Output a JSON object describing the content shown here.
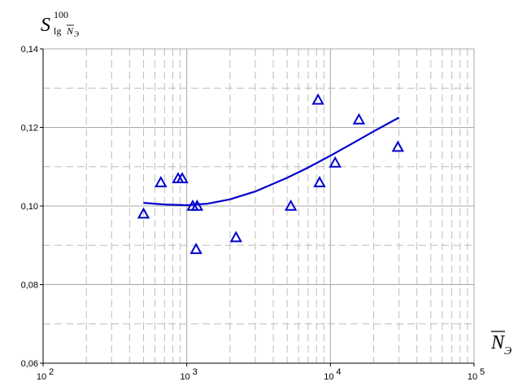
{
  "chart_data": {
    "type": "scatter",
    "y_label": {
      "main": "S",
      "superscript": "100",
      "subscript_prefix": "lg",
      "subscript_var": "N",
      "subscript_index": "Э"
    },
    "x_label": {
      "main": "N",
      "subscript": "Э"
    },
    "x_scale": "log",
    "xlim": [
      100,
      100000
    ],
    "ylim": [
      0.06,
      0.14
    ],
    "x_ticks": [
      {
        "value": 100,
        "base": "10",
        "exp": "2"
      },
      {
        "value": 1000,
        "base": "10",
        "exp": "3"
      },
      {
        "value": 10000,
        "base": "10",
        "exp": "4"
      },
      {
        "value": 100000,
        "base": "10",
        "exp": "5"
      }
    ],
    "y_ticks": [
      {
        "value": 0.06,
        "label": "0,06"
      },
      {
        "value": 0.08,
        "label": "0,08"
      },
      {
        "value": 0.1,
        "label": "0,10"
      },
      {
        "value": 0.12,
        "label": "0,12"
      },
      {
        "value": 0.14,
        "label": "0,14"
      }
    ],
    "grid": true,
    "colors": {
      "series": "#0000cc",
      "grid_major": "#a8a8a8",
      "grid_minor": "#bdbdbd",
      "axis": "#000000"
    },
    "series": [
      {
        "type": "scatter",
        "marker": "triangle-open",
        "points": [
          {
            "x": 500,
            "y": 0.098
          },
          {
            "x": 660,
            "y": 0.106
          },
          {
            "x": 870,
            "y": 0.107
          },
          {
            "x": 930,
            "y": 0.107
          },
          {
            "x": 1100,
            "y": 0.1
          },
          {
            "x": 1160,
            "y": 0.089
          },
          {
            "x": 1180,
            "y": 0.1
          },
          {
            "x": 2200,
            "y": 0.092
          },
          {
            "x": 5300,
            "y": 0.1
          },
          {
            "x": 8200,
            "y": 0.127
          },
          {
            "x": 8400,
            "y": 0.106
          },
          {
            "x": 10800,
            "y": 0.111
          },
          {
            "x": 15800,
            "y": 0.122
          },
          {
            "x": 29500,
            "y": 0.115
          }
        ]
      },
      {
        "type": "line",
        "points": [
          {
            "x": 500,
            "y": 0.1008
          },
          {
            "x": 700,
            "y": 0.1004
          },
          {
            "x": 1000,
            "y": 0.1002
          },
          {
            "x": 1400,
            "y": 0.1006
          },
          {
            "x": 2000,
            "y": 0.1017
          },
          {
            "x": 3000,
            "y": 0.1037
          },
          {
            "x": 5000,
            "y": 0.1072
          },
          {
            "x": 7000,
            "y": 0.1098
          },
          {
            "x": 10000,
            "y": 0.1128
          },
          {
            "x": 14000,
            "y": 0.1158
          },
          {
            "x": 20000,
            "y": 0.119
          },
          {
            "x": 30000,
            "y": 0.1225
          }
        ]
      }
    ]
  }
}
